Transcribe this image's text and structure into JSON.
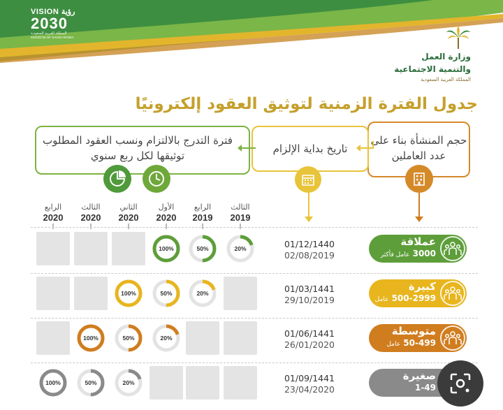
{
  "vision": {
    "top": "VISION رؤية",
    "number": "2030",
    "arabic": "المملكة العربية السعودية",
    "english": "KINGDOM OF SAUDI ARABIA"
  },
  "ministry": {
    "line1": "وزارة العمل",
    "line2": "والتنمية الاجتماعية",
    "line3": "المملكة العربية السعودية"
  },
  "title": "جدول الفترة الزمنية لتوثيق العقود إلكترونيًا",
  "headers": {
    "size": "حجم المنشأة بناء على عدد العاملين",
    "date": "تاريخ بداية الإلزام",
    "graduation": "فترة التدرج بالالتزام ونسب العقود المطلوب توثيقها لكل ربع سنوي"
  },
  "columns": [
    {
      "quarter": "الرابع",
      "year": "2020"
    },
    {
      "quarter": "الثالث",
      "year": "2020"
    },
    {
      "quarter": "الثاني",
      "year": "2020"
    },
    {
      "quarter": "الأول",
      "year": "2020"
    },
    {
      "quarter": "الرابع",
      "year": "2019"
    },
    {
      "quarter": "الثالث",
      "year": "2019"
    }
  ],
  "rows": [
    {
      "name": "عملاقة",
      "count": "3000",
      "unit": "عامل فأكثر",
      "hijri": "01/12/1440",
      "gregorian": "02/08/2019",
      "color": "#5e9e3a",
      "percents": [
        "",
        "",
        "",
        "100%",
        "50%",
        "20%"
      ],
      "fills": [
        0,
        0,
        0,
        1,
        0.5,
        0.2
      ]
    },
    {
      "name": "كبيرة",
      "count": "500-2999",
      "unit": "عامل",
      "hijri": "01/03/1441",
      "gregorian": "29/10/2019",
      "color": "#e8b51e",
      "percents": [
        "",
        "",
        "100%",
        "50%",
        "20%",
        ""
      ],
      "fills": [
        0,
        0,
        1,
        0.5,
        0.2,
        0
      ]
    },
    {
      "name": "متوسطة",
      "count": "50-499",
      "unit": "عامل",
      "hijri": "01/06/1441",
      "gregorian": "26/01/2020",
      "color": "#d07d1f",
      "percents": [
        "",
        "100%",
        "50%",
        "20%",
        "",
        ""
      ],
      "fills": [
        0,
        1,
        0.5,
        0.2,
        0,
        0
      ]
    },
    {
      "name": "صغيرة",
      "count": "1-49",
      "unit": "",
      "hijri": "01/09/1441",
      "gregorian": "23/04/2020",
      "color": "#8a8a8a",
      "percents": [
        "100%",
        "50%",
        "20%",
        "",
        "",
        ""
      ],
      "fills": [
        1,
        0.5,
        0.2,
        0,
        0,
        0
      ]
    }
  ]
}
